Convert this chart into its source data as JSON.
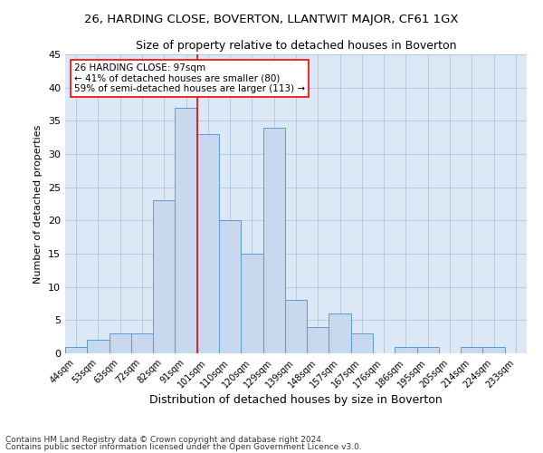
{
  "title": "26, HARDING CLOSE, BOVERTON, LLANTWIT MAJOR, CF61 1GX",
  "subtitle": "Size of property relative to detached houses in Boverton",
  "xlabel": "Distribution of detached houses by size in Boverton",
  "ylabel": "Number of detached properties",
  "footnote1": "Contains HM Land Registry data © Crown copyright and database right 2024.",
  "footnote2": "Contains public sector information licensed under the Open Government Licence v3.0.",
  "annotation_line1": "26 HARDING CLOSE: 97sqm",
  "annotation_line2": "← 41% of detached houses are smaller (80)",
  "annotation_line3": "59% of semi-detached houses are larger (113) →",
  "bar_labels": [
    "44sqm",
    "53sqm",
    "63sqm",
    "72sqm",
    "82sqm",
    "91sqm",
    "101sqm",
    "110sqm",
    "120sqm",
    "129sqm",
    "139sqm",
    "148sqm",
    "157sqm",
    "167sqm",
    "176sqm",
    "186sqm",
    "195sqm",
    "205sqm",
    "214sqm",
    "224sqm",
    "233sqm"
  ],
  "bar_values": [
    1,
    2,
    3,
    3,
    23,
    37,
    33,
    20,
    15,
    34,
    8,
    4,
    6,
    3,
    0,
    1,
    1,
    0,
    1,
    1,
    0
  ],
  "bar_color": "#c8d9ef",
  "bar_edge_color": "#5b9bd5",
  "property_line_x": 5.5,
  "property_line_color": "red",
  "ylim": [
    0,
    45
  ],
  "yticks": [
    0,
    5,
    10,
    15,
    20,
    25,
    30,
    35,
    40,
    45
  ],
  "ax_facecolor": "#dce8f5",
  "background_color": "#ffffff",
  "grid_color": "#b0c4d8",
  "annotation_box_facecolor": "#ffffff",
  "annotation_box_edge_color": "red",
  "title_fontsize": 9.5,
  "subtitle_fontsize": 9,
  "annotation_fontsize": 7.5,
  "ylabel_fontsize": 8,
  "xlabel_fontsize": 9,
  "tick_fontsize": 7,
  "ytick_fontsize": 8,
  "footnote_fontsize": 6.5
}
